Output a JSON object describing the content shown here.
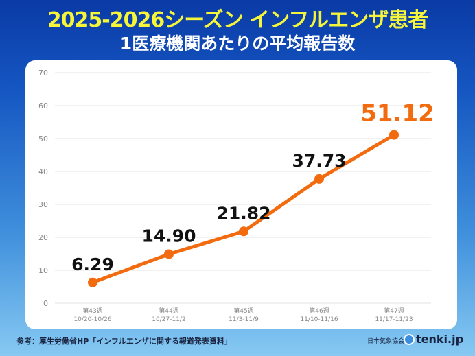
{
  "header": {
    "title": "2025-2026シーズン インフルエンザ患者",
    "subtitle": "1医療機関あたりの平均報告数"
  },
  "chart_data": {
    "type": "line",
    "categories": [
      [
        "第43週",
        "10/20-10/26"
      ],
      [
        "第44週",
        "10/27-11/2"
      ],
      [
        "第45週",
        "11/3-11/9"
      ],
      [
        "第46週",
        "11/10-11/16"
      ],
      [
        "第47週",
        "11/17-11/23"
      ]
    ],
    "values": [
      6.29,
      14.9,
      21.82,
      37.73,
      51.12
    ],
    "data_labels": [
      "6.29",
      "14.90",
      "21.82",
      "37.73",
      "51.12"
    ],
    "ylim": [
      0,
      70
    ],
    "yticks": [
      0,
      10,
      20,
      30,
      40,
      50,
      60,
      70
    ],
    "grid": true,
    "color": "#f26b0f",
    "highlight_color": "#f26b0f",
    "label_color": "#111111"
  },
  "footer": {
    "source": "参考：厚生労働省HP「インフルエンザに関する報道発表資料」",
    "org": "日本気象協会",
    "brand": "tenki.jp"
  }
}
